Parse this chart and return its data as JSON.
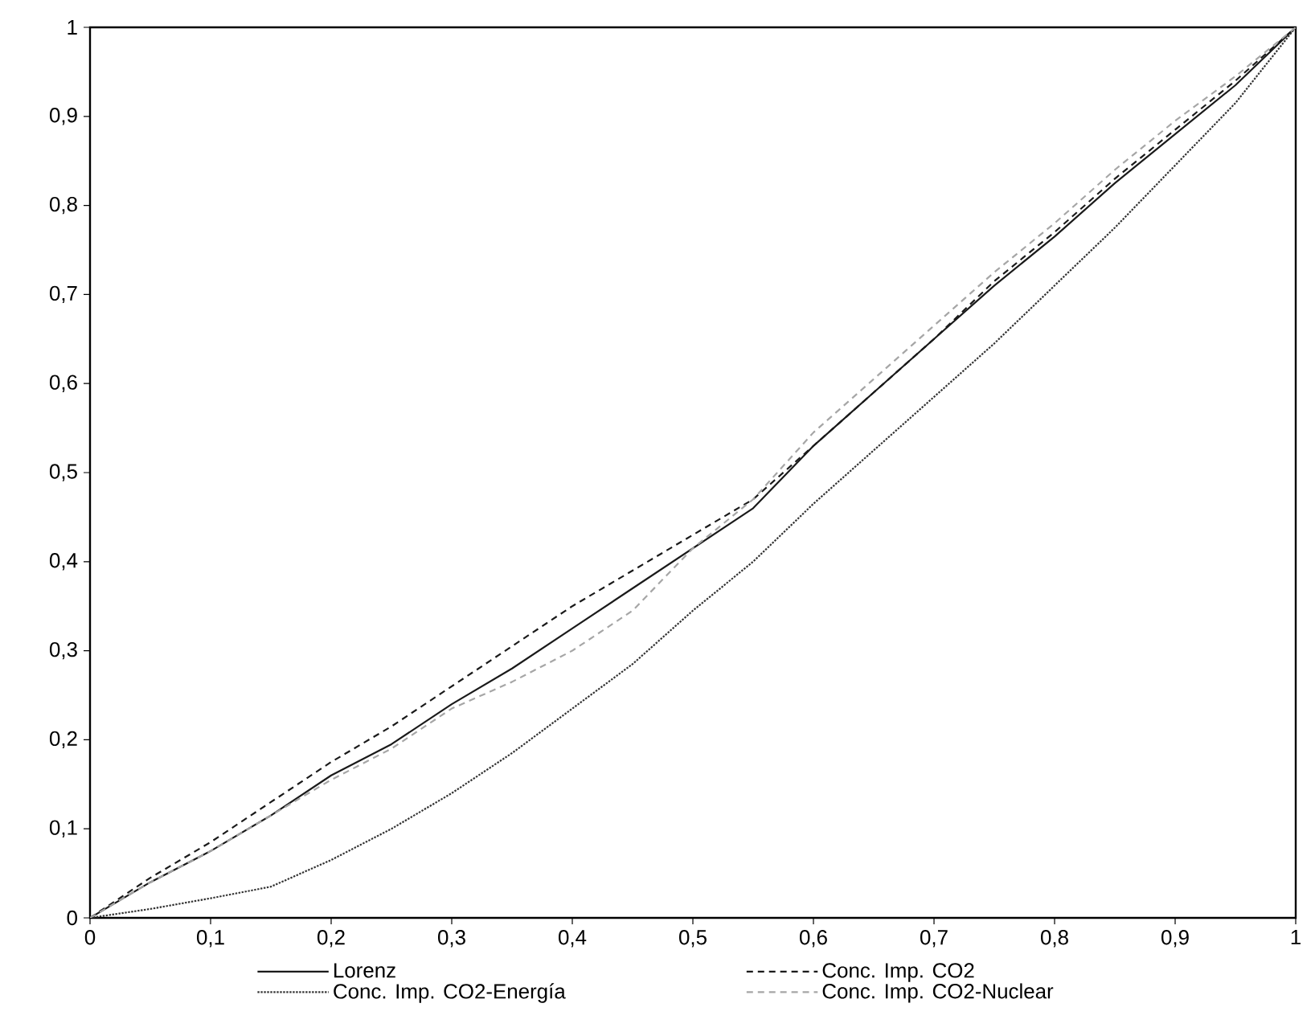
{
  "chart_data": {
    "type": "line",
    "legend": "bottom",
    "marker": "none",
    "x": [
      0,
      0.05,
      0.1,
      0.15,
      0.2,
      0.25,
      0.3,
      0.35,
      0.4,
      0.45,
      0.5,
      0.55,
      0.6,
      0.65,
      0.7,
      0.75,
      0.8,
      0.85,
      0.9,
      0.95,
      1
    ],
    "xlim": [
      0,
      1
    ],
    "ylim": [
      0,
      1
    ],
    "xticks": [
      0,
      {
        "value": 0.1,
        "label": "0,1"
      },
      {
        "value": 0.2,
        "label": "0,2"
      },
      {
        "value": 0.3,
        "label": "0,3"
      },
      {
        "value": 0.4,
        "label": "0,4"
      },
      {
        "value": 0.5,
        "label": "0,5"
      },
      {
        "value": 0.6,
        "label": "0,6"
      },
      {
        "value": 0.7,
        "label": "0,7"
      },
      {
        "value": 0.8,
        "label": "0,8"
      },
      {
        "value": 0.9,
        "label": "0,9"
      },
      1
    ],
    "yticks": [
      0,
      {
        "value": 0.1,
        "label": "0,1"
      },
      {
        "value": 0.2,
        "label": "0,2"
      },
      {
        "value": 0.3,
        "label": "0,3"
      },
      {
        "value": 0.4,
        "label": "0,4"
      },
      {
        "value": 0.5,
        "label": "0,5"
      },
      {
        "value": 0.6,
        "label": "0,6"
      },
      {
        "value": 0.7,
        "label": "0,7"
      },
      {
        "value": 0.8,
        "label": "0,8"
      },
      {
        "value": 0.9,
        "label": "0,9"
      },
      1
    ],
    "series": [
      {
        "name": "Lorenz",
        "color": "#1a1a1a",
        "line_style": "solid",
        "values": [
          0,
          0.04,
          0.075,
          0.115,
          0.16,
          0.195,
          0.24,
          0.28,
          0.325,
          0.37,
          0.415,
          0.46,
          0.53,
          0.59,
          0.65,
          0.71,
          0.765,
          0.825,
          0.88,
          0.935,
          1
        ]
      },
      {
        "name": "Conc. Imp. CO2",
        "color": "#1a1a1a",
        "line_style": "dashed",
        "values": [
          0,
          0.045,
          0.085,
          0.13,
          0.175,
          0.215,
          0.26,
          0.305,
          0.35,
          0.39,
          0.43,
          0.47,
          0.53,
          0.59,
          0.65,
          0.715,
          0.77,
          0.83,
          0.885,
          0.94,
          1
        ]
      },
      {
        "name": "Conc. Imp. CO2-Energía",
        "color": "#333333",
        "line_style": "dotted",
        "values": [
          0,
          0.01,
          0.022,
          0.035,
          0.065,
          0.1,
          0.14,
          0.185,
          0.235,
          0.285,
          0.345,
          0.4,
          0.465,
          0.525,
          0.585,
          0.645,
          0.71,
          0.775,
          0.845,
          0.915,
          1
        ]
      },
      {
        "name": "Conc. Imp. CO2-Nuclear",
        "color": "#a6a6a6",
        "line_style": "dashed",
        "values": [
          0,
          0.04,
          0.075,
          0.115,
          0.155,
          0.19,
          0.235,
          0.265,
          0.3,
          0.345,
          0.415,
          0.47,
          0.545,
          0.605,
          0.665,
          0.725,
          0.78,
          0.84,
          0.895,
          0.945,
          1
        ]
      }
    ]
  }
}
